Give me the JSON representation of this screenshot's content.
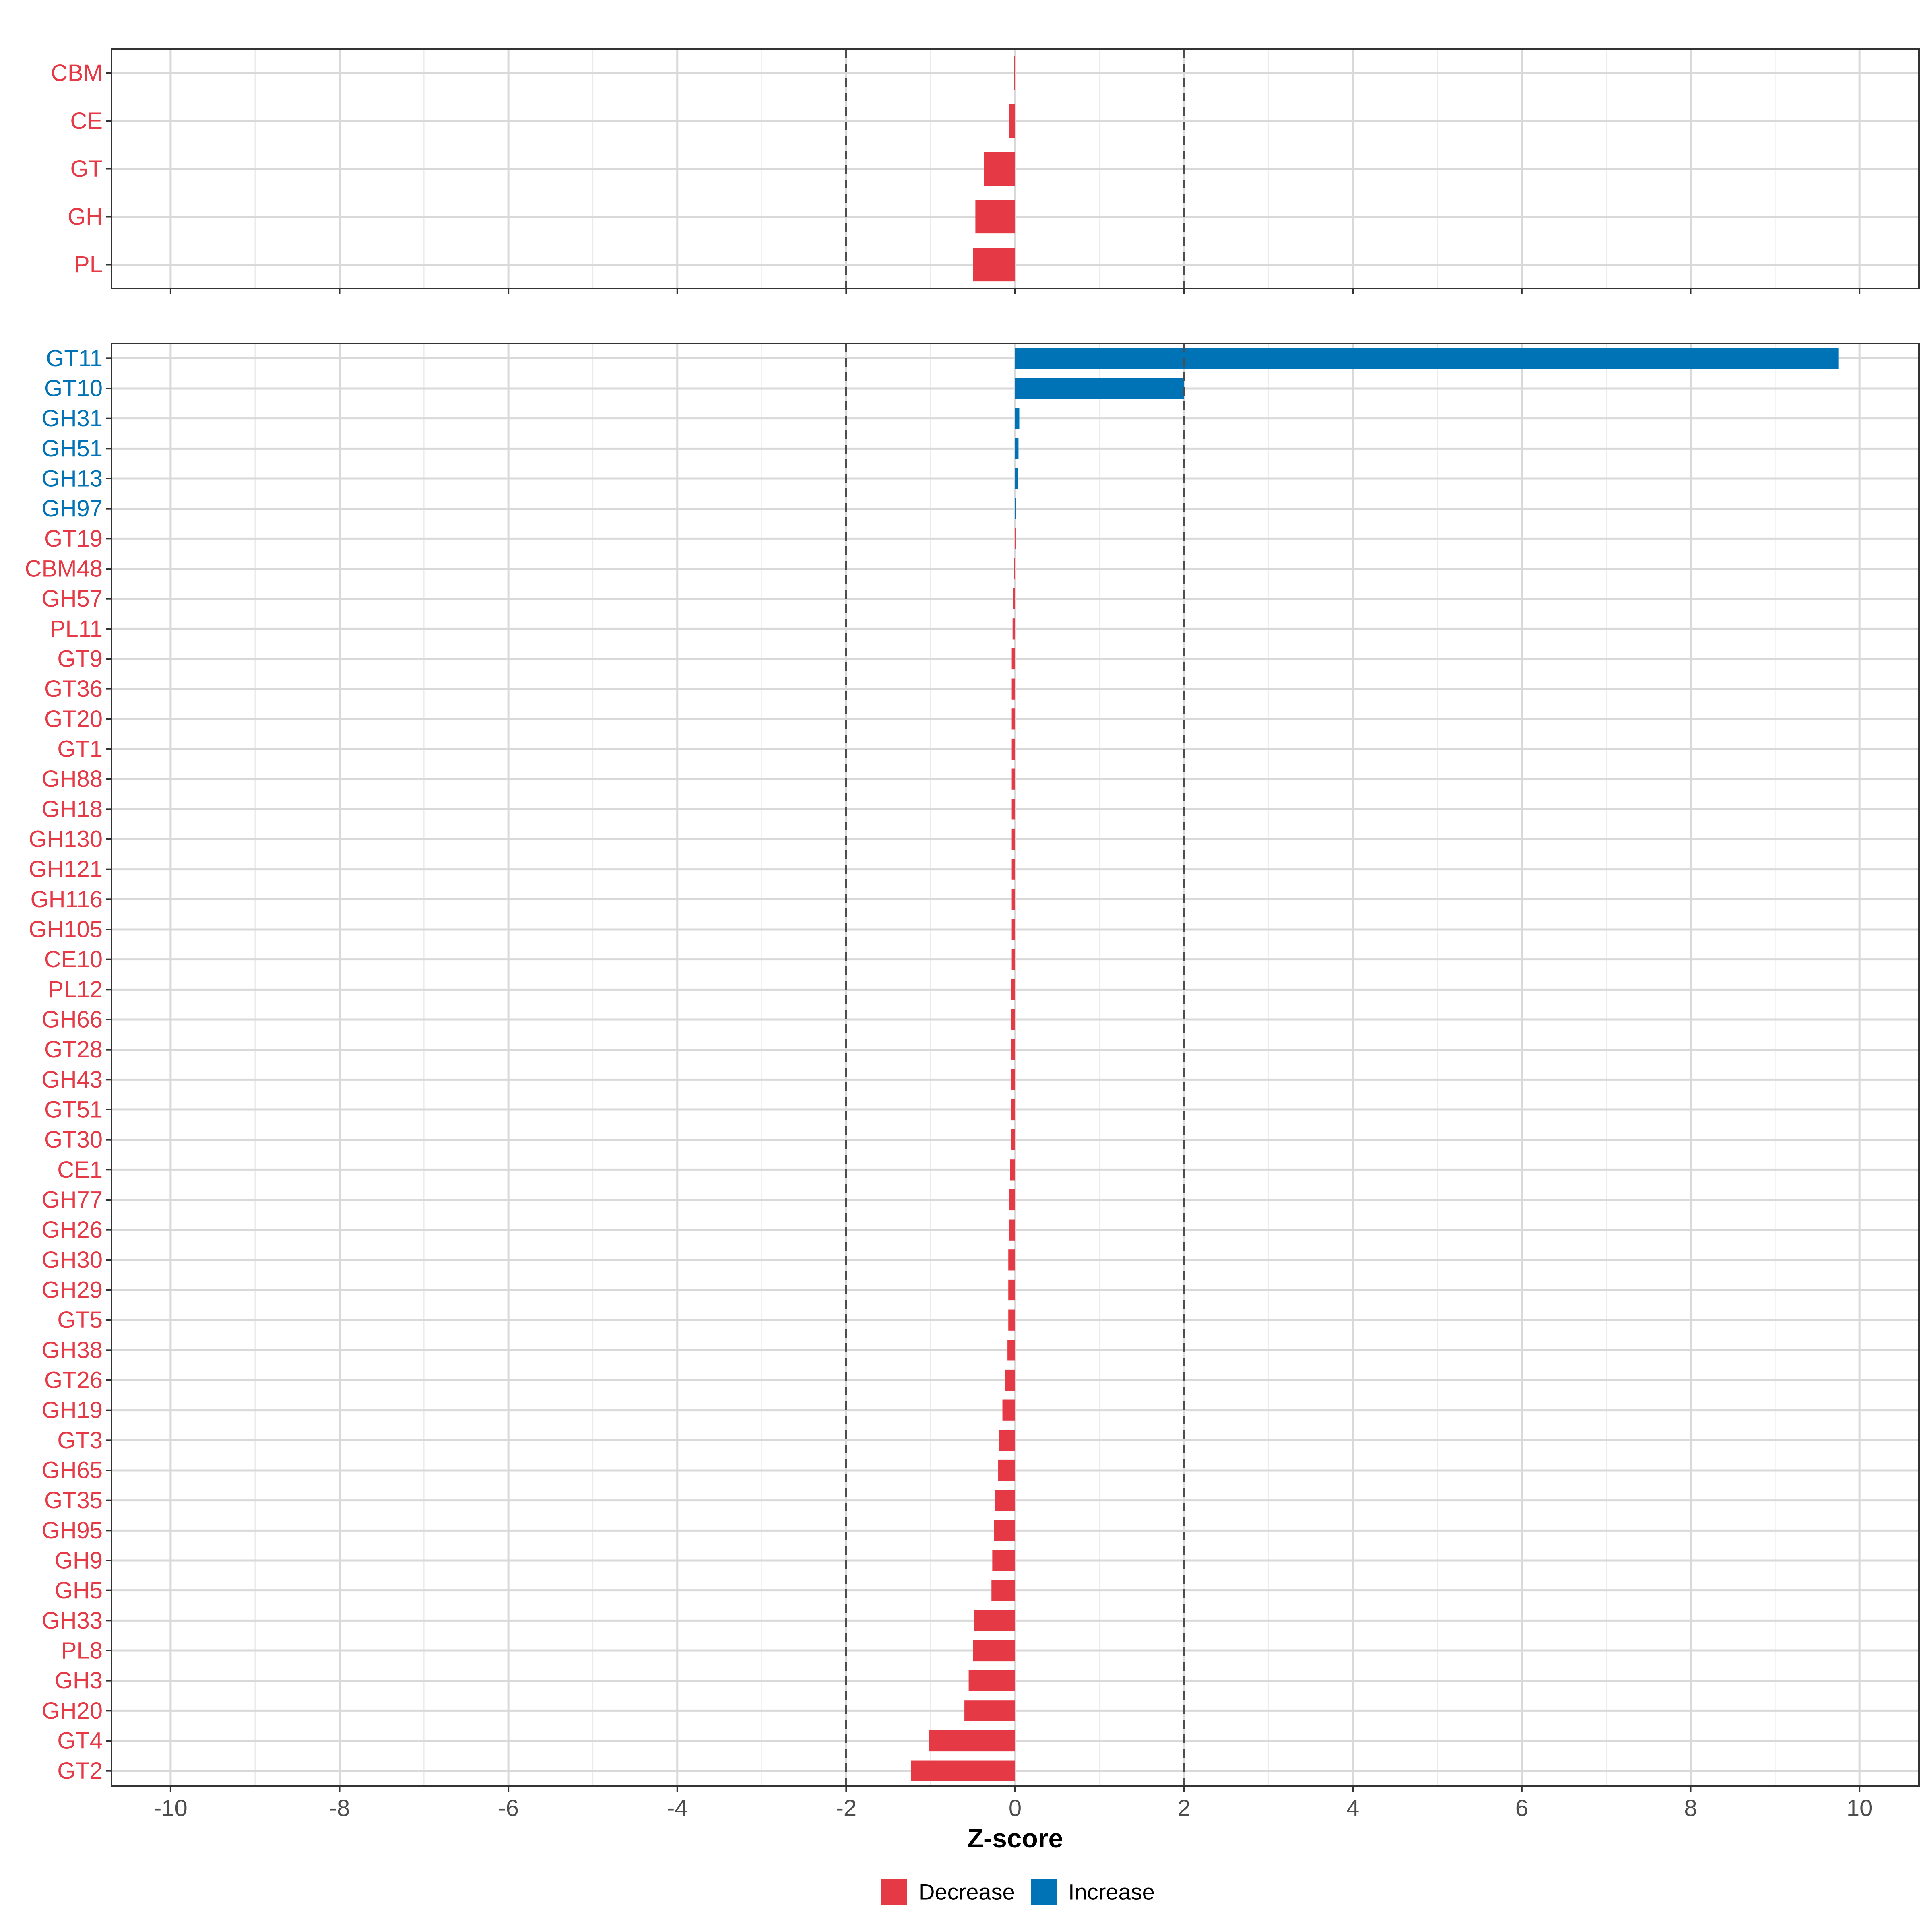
{
  "chart_data": {
    "type": "bar",
    "orientation": "horizontal",
    "xlabel": "Z-score",
    "xlim": [
      -10.7,
      10.7
    ],
    "xticks": [
      -10,
      -8,
      -6,
      -4,
      -2,
      0,
      2,
      4,
      6,
      8,
      10
    ],
    "xtick_labels": [
      "-10",
      "-8",
      "-6",
      "-4",
      "-2",
      "0",
      "2",
      "4",
      "6",
      "8",
      "10"
    ],
    "reference_lines": [
      -2,
      2
    ],
    "grid": true,
    "legend_position": "bottom",
    "colors": {
      "Decrease": "#e63946",
      "Increase": "#0073b7"
    },
    "legend": [
      {
        "label": "Decrease",
        "color": "#e63946"
      },
      {
        "label": "Increase",
        "color": "#0073b7"
      }
    ],
    "panels": [
      {
        "name": "top",
        "categories": [
          "CBM",
          "CE",
          "GT",
          "GH",
          "PL"
        ],
        "values": [
          -0.01,
          -0.07,
          -0.37,
          -0.47,
          -0.5
        ],
        "groups": [
          "Decrease",
          "Decrease",
          "Decrease",
          "Decrease",
          "Decrease"
        ]
      },
      {
        "name": "bottom",
        "categories": [
          "GT11",
          "GT10",
          "GH31",
          "GH51",
          "GH13",
          "GH97",
          "GT19",
          "CBM48",
          "GH57",
          "PL11",
          "GT9",
          "GT36",
          "GT20",
          "GT1",
          "GH88",
          "GH18",
          "GH130",
          "GH121",
          "GH116",
          "GH105",
          "CE10",
          "PL12",
          "GH66",
          "GT28",
          "GH43",
          "GT51",
          "GT30",
          "CE1",
          "GH77",
          "GH26",
          "GH30",
          "GH29",
          "GT5",
          "GH38",
          "GT26",
          "GH19",
          "GT3",
          "GH65",
          "GT35",
          "GH95",
          "GH9",
          "GH5",
          "GH33",
          "PL8",
          "GH3",
          "GH20",
          "GT4",
          "GT2"
        ],
        "values": [
          9.75,
          2.0,
          0.05,
          0.04,
          0.03,
          0.01,
          -0.005,
          -0.01,
          -0.02,
          -0.03,
          -0.04,
          -0.04,
          -0.04,
          -0.04,
          -0.04,
          -0.04,
          -0.04,
          -0.04,
          -0.04,
          -0.04,
          -0.04,
          -0.05,
          -0.05,
          -0.05,
          -0.05,
          -0.05,
          -0.05,
          -0.06,
          -0.07,
          -0.07,
          -0.08,
          -0.08,
          -0.08,
          -0.09,
          -0.12,
          -0.15,
          -0.19,
          -0.2,
          -0.24,
          -0.25,
          -0.27,
          -0.28,
          -0.49,
          -0.5,
          -0.55,
          -0.6,
          -1.02,
          -1.23
        ],
        "groups": [
          "Increase",
          "Increase",
          "Increase",
          "Increase",
          "Increase",
          "Increase",
          "Decrease",
          "Decrease",
          "Decrease",
          "Decrease",
          "Decrease",
          "Decrease",
          "Decrease",
          "Decrease",
          "Decrease",
          "Decrease",
          "Decrease",
          "Decrease",
          "Decrease",
          "Decrease",
          "Decrease",
          "Decrease",
          "Decrease",
          "Decrease",
          "Decrease",
          "Decrease",
          "Decrease",
          "Decrease",
          "Decrease",
          "Decrease",
          "Decrease",
          "Decrease",
          "Decrease",
          "Decrease",
          "Decrease",
          "Decrease",
          "Decrease",
          "Decrease",
          "Decrease",
          "Decrease",
          "Decrease",
          "Decrease",
          "Decrease",
          "Decrease",
          "Decrease",
          "Decrease",
          "Decrease",
          "Decrease"
        ]
      }
    ]
  }
}
